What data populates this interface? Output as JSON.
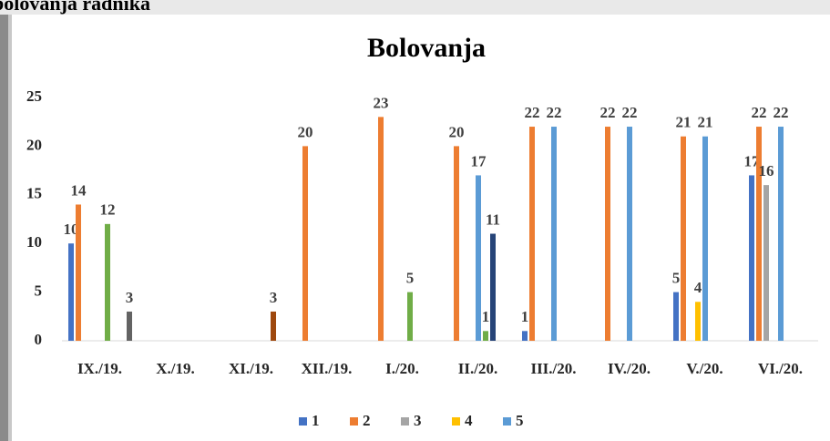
{
  "heading": "bolovanja radnika",
  "chart_data": {
    "type": "bar",
    "title": "Bolovanja",
    "categories": [
      "IX./19.",
      "X./19.",
      "XI./19.",
      "XII./19.",
      "I./20.",
      "II./20.",
      "III./20.",
      "IV./20.",
      "V./20.",
      "VI./20."
    ],
    "series": [
      {
        "name": "1",
        "color": "#4472c4",
        "values": [
          10,
          null,
          null,
          null,
          null,
          null,
          1,
          null,
          5,
          17
        ]
      },
      {
        "name": "2",
        "color": "#ed7d31",
        "values": [
          14,
          null,
          null,
          20,
          23,
          20,
          22,
          22,
          21,
          22
        ]
      },
      {
        "name": "3",
        "color": "#a5a5a5",
        "values": [
          null,
          null,
          null,
          null,
          null,
          null,
          null,
          null,
          null,
          16
        ]
      },
      {
        "name": "4",
        "color": "#ffc000",
        "values": [
          null,
          null,
          null,
          null,
          null,
          null,
          null,
          null,
          4,
          null
        ]
      },
      {
        "name": "5",
        "color": "#5b9bd5",
        "values": [
          null,
          null,
          null,
          null,
          null,
          17,
          22,
          22,
          21,
          22
        ]
      },
      {
        "color": "#70ad47",
        "values": [
          12,
          null,
          null,
          null,
          5,
          1,
          null,
          null,
          null,
          null
        ]
      },
      {
        "color": "#264478",
        "values": [
          null,
          null,
          null,
          null,
          null,
          11,
          null,
          null,
          null,
          null
        ]
      },
      {
        "color": "#9e480e",
        "values": [
          null,
          null,
          3,
          null,
          null,
          null,
          null,
          null,
          null,
          null
        ]
      },
      {
        "color": "#636363",
        "values": [
          3,
          null,
          null,
          null,
          null,
          null,
          null,
          null,
          null,
          null
        ]
      }
    ],
    "ylim": [
      0,
      25
    ],
    "yticks": [
      0,
      5,
      10,
      15,
      20,
      25
    ],
    "grid": false,
    "legend": "bottom"
  }
}
